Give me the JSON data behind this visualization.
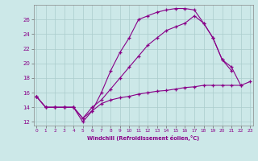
{
  "xlabel": "Windchill (Refroidissement éolien,°C)",
  "bg_color": "#cce8e8",
  "line_color": "#880088",
  "grid_color": "#aacccc",
  "line1_x": [
    0,
    1,
    2,
    3,
    4,
    5,
    6,
    7,
    8,
    9,
    10,
    11,
    12,
    13,
    14,
    15,
    16,
    17,
    18,
    19,
    20,
    21
  ],
  "line1_y": [
    15.5,
    14.0,
    14.0,
    14.0,
    14.0,
    12.0,
    13.5,
    16.0,
    19.0,
    21.5,
    23.5,
    26.0,
    26.5,
    27.0,
    27.3,
    27.5,
    27.5,
    27.3,
    25.5,
    23.5,
    20.5,
    19.0
  ],
  "line2_x": [
    0,
    1,
    2,
    3,
    4,
    5,
    6,
    7,
    8,
    9,
    10,
    11,
    12,
    13,
    14,
    15,
    16,
    17,
    18,
    19,
    20,
    21,
    22
  ],
  "line2_y": [
    15.5,
    14.0,
    14.0,
    14.0,
    14.0,
    12.5,
    14.0,
    15.0,
    16.5,
    18.0,
    19.5,
    21.0,
    22.5,
    23.5,
    24.5,
    25.0,
    25.5,
    26.5,
    25.5,
    23.5,
    20.5,
    19.5,
    17.0
  ],
  "line3_x": [
    0,
    1,
    2,
    3,
    4,
    5,
    6,
    7,
    8,
    9,
    10,
    11,
    12,
    13,
    14,
    15,
    16,
    17,
    18,
    19,
    20,
    21,
    22,
    23
  ],
  "line3_y": [
    15.5,
    14.0,
    14.0,
    14.0,
    14.0,
    12.5,
    13.5,
    14.5,
    15.0,
    15.3,
    15.5,
    15.8,
    16.0,
    16.2,
    16.3,
    16.5,
    16.7,
    16.8,
    17.0,
    17.0,
    17.0,
    17.0,
    17.0,
    17.5
  ],
  "xlim": [
    0,
    23
  ],
  "ylim": [
    11.5,
    28.0
  ],
  "xticks": [
    0,
    1,
    2,
    3,
    4,
    5,
    6,
    7,
    8,
    9,
    10,
    11,
    12,
    13,
    14,
    15,
    16,
    17,
    18,
    19,
    20,
    21,
    22,
    23
  ],
  "yticks": [
    12,
    14,
    16,
    18,
    20,
    22,
    24,
    26
  ]
}
